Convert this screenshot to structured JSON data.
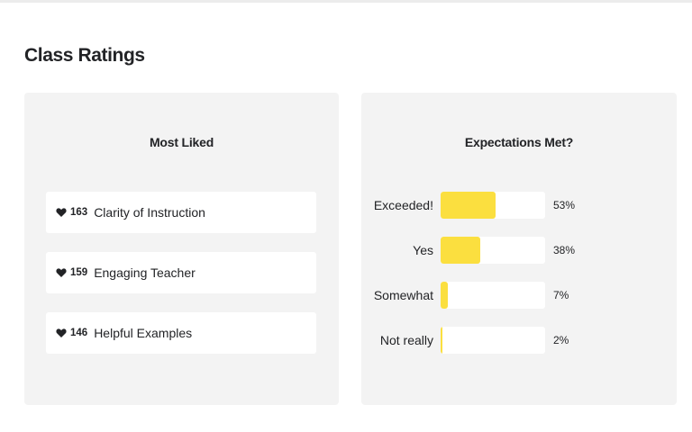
{
  "page": {
    "title": "Class Ratings"
  },
  "most_liked": {
    "title": "Most Liked",
    "items": [
      {
        "count": "163",
        "label": "Clarity of Instruction",
        "icon": "heart-icon"
      },
      {
        "count": "159",
        "label": "Engaging Teacher",
        "icon": "heart-icon"
      },
      {
        "count": "146",
        "label": "Helpful Examples",
        "icon": "heart-icon"
      }
    ]
  },
  "expectations": {
    "title": "Expectations Met?",
    "rows": [
      {
        "label": "Exceeded!",
        "percent_text": "53%",
        "percent": 53
      },
      {
        "label": "Yes",
        "percent_text": "38%",
        "percent": 38
      },
      {
        "label": "Somewhat",
        "percent_text": "7%",
        "percent": 7
      },
      {
        "label": "Not really",
        "percent_text": "2%",
        "percent": 2
      }
    ],
    "bar_color": "#fbdf3f"
  },
  "colors": {
    "card_background": "#f3f3f3",
    "text": "#222326",
    "bar": "#fbdf3f"
  }
}
